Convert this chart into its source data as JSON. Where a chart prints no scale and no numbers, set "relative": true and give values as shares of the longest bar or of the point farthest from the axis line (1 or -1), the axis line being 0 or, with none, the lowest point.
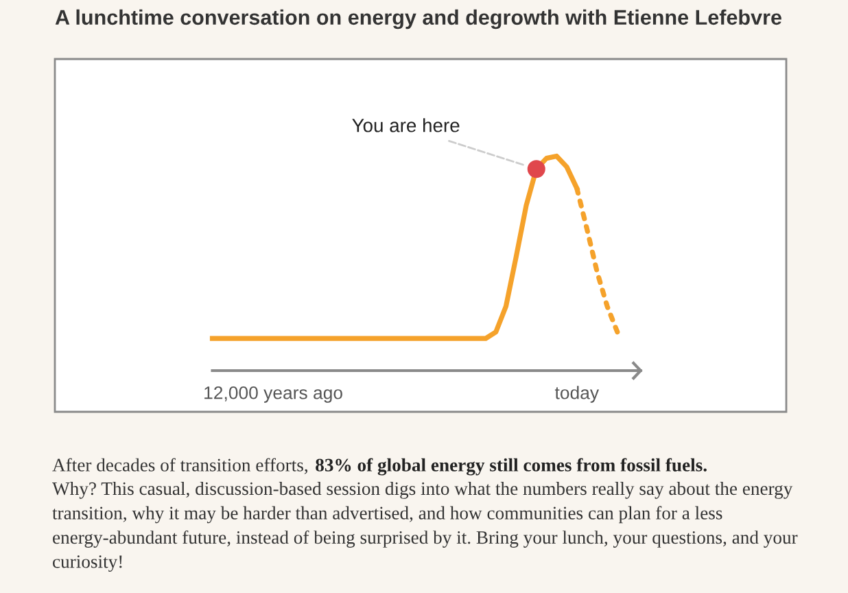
{
  "chart_data": {
    "type": "line",
    "relative": true,
    "title": "A lunchtime conversation on energy and degrowth with Etienne Lefebvre",
    "categories": [
      null,
      null,
      null,
      null,
      null,
      null,
      "12,000 years ago",
      null,
      null,
      null,
      null,
      null,
      null,
      null,
      null,
      null,
      null,
      null,
      null,
      null,
      null,
      null,
      null,
      null,
      null,
      null,
      null,
      null,
      null,
      null,
      null,
      null,
      null,
      null,
      null,
      null,
      "today",
      null,
      null,
      null,
      null
    ],
    "series": [
      {
        "color": "#f5a22b",
        "values": [
          0.15,
          0.15,
          0.15,
          0.15,
          0.15,
          0.15,
          0.15,
          0.15,
          0.15,
          0.15,
          0.15,
          0.15,
          0.15,
          0.15,
          0.15,
          0.15,
          0.15,
          0.15,
          0.15,
          0.15,
          0.15,
          0.15,
          0.15,
          0.15,
          0.15,
          0.15,
          0.15,
          0.15,
          0.18,
          0.3,
          0.53,
          0.77,
          0.94,
          0.99,
          1,
          0.95,
          0.85,
          null,
          null,
          null,
          null
        ]
      },
      {
        "color": "#f5a22b",
        "line_style": "dotted",
        "values": [
          null,
          null,
          null,
          null,
          null,
          null,
          null,
          null,
          null,
          null,
          null,
          null,
          null,
          null,
          null,
          null,
          null,
          null,
          null,
          null,
          null,
          null,
          null,
          null,
          null,
          null,
          null,
          null,
          null,
          null,
          null,
          null,
          null,
          null,
          null,
          null,
          0.85,
          0.66,
          0.46,
          0.3,
          0.18
        ]
      },
      {
        "type": "scatter",
        "color": "#e0474c",
        "marker": "circle",
        "values": [
          null,
          null,
          null,
          null,
          null,
          null,
          null,
          null,
          null,
          null,
          null,
          null,
          null,
          null,
          null,
          null,
          null,
          null,
          null,
          null,
          null,
          null,
          null,
          null,
          null,
          null,
          null,
          null,
          null,
          null,
          null,
          null,
          0.94,
          null,
          null,
          null,
          null,
          null,
          null,
          null,
          null
        ]
      }
    ],
    "annotations": [
      "You are here",
      "After decades of transition efforts, ",
      "83% of global energy still comes from fossil fuels.",
      "Why? This casual, discussion-based session digs into what the numbers really say about the energy transition, why it may be harder than advertised, and how communities can plan for a less energy-abundant future, instead of being surprised by it. Bring your lunch, your questions, and your curiosity!"
    ]
  }
}
